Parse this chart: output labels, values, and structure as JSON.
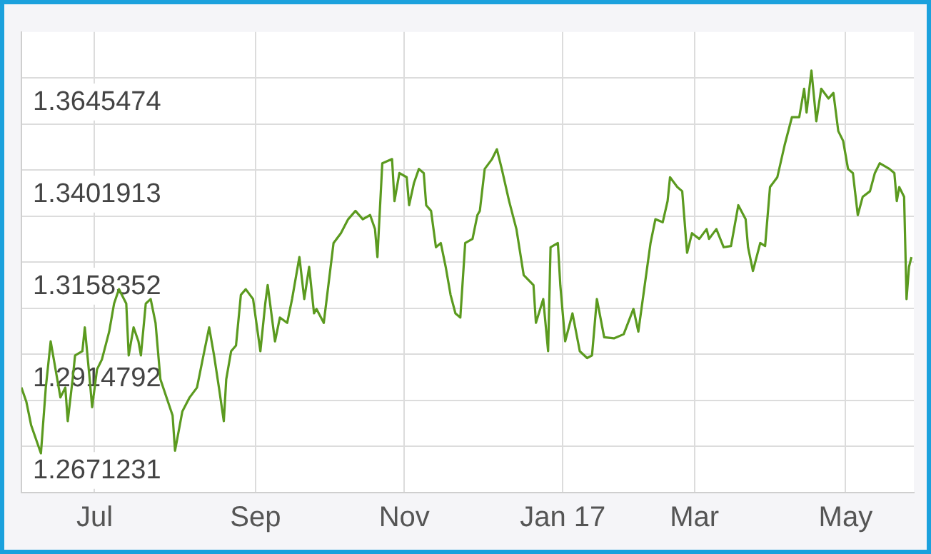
{
  "chart_data": {
    "type": "line",
    "color": "#5b9a1f",
    "marker": "none",
    "grid": true,
    "xlim": [
      "2016-06-15",
      "2017-06-16"
    ],
    "xticks": [
      {
        "value": "2016-07-15",
        "label": "Jul"
      },
      {
        "value": "2016-09-19",
        "label": "Sep"
      },
      {
        "value": "2016-11-19",
        "label": "Nov"
      },
      {
        "value": "2017-01-23",
        "label": "Jan 17"
      },
      {
        "value": "2017-03-18",
        "label": "Mar"
      },
      {
        "value": "2017-05-19",
        "label": "May"
      }
    ],
    "ylim": [
      1.2671231,
      1.3889035
    ],
    "yticks": [
      1.2671231,
      {
        "value": 1.27930115,
        "label": null
      },
      1.2914792,
      {
        "value": 1.30365725,
        "label": null
      },
      1.3158352,
      {
        "value": 1.32801325,
        "label": null
      },
      1.3401913,
      {
        "value": 1.35236935,
        "label": null
      },
      1.3645474,
      {
        "value": 1.37672545,
        "label": null
      }
    ],
    "x": [
      "2016-06-15",
      "2016-06-17",
      "2016-06-19",
      "2016-06-23",
      "2016-06-25",
      "2016-06-27",
      "2016-06-29",
      "2016-07-01",
      "2016-07-03",
      "2016-07-04",
      "2016-07-06",
      "2016-07-07",
      "2016-07-10",
      "2016-07-11",
      "2016-07-13",
      "2016-07-14",
      "2016-07-16",
      "2016-07-18",
      "2016-07-21",
      "2016-07-23",
      "2016-07-25",
      "2016-07-28",
      "2016-07-29",
      "2016-07-31",
      "2016-08-02",
      "2016-08-03",
      "2016-08-05",
      "2016-08-07",
      "2016-08-09",
      "2016-08-11",
      "2016-08-16",
      "2016-08-17",
      "2016-08-20",
      "2016-08-23",
      "2016-08-26",
      "2016-08-29",
      "2016-08-31",
      "2016-09-02",
      "2016-09-04",
      "2016-09-06",
      "2016-09-07",
      "2016-09-09",
      "2016-09-11",
      "2016-09-13",
      "2016-09-15",
      "2016-09-18",
      "2016-09-21",
      "2016-09-23",
      "2016-09-24",
      "2016-09-27",
      "2016-09-29",
      "2016-10-02",
      "2016-10-04",
      "2016-10-07",
      "2016-10-09",
      "2016-10-11",
      "2016-10-13",
      "2016-10-14",
      "2016-10-17",
      "2016-10-21",
      "2016-10-24",
      "2016-10-27",
      "2016-10-30",
      "2016-11-02",
      "2016-11-05",
      "2016-11-07",
      "2016-11-08",
      "2016-11-10",
      "2016-11-14",
      "2016-11-15",
      "2016-11-17",
      "2016-11-20",
      "2016-11-21",
      "2016-11-23",
      "2016-11-25",
      "2016-11-27",
      "2016-11-28",
      "2016-11-30",
      "2016-12-02",
      "2016-12-04",
      "2016-12-06",
      "2016-12-08",
      "2016-12-10",
      "2016-12-12",
      "2016-12-14",
      "2016-12-17",
      "2016-12-19",
      "2016-12-20",
      "2016-12-22",
      "2016-12-25",
      "2016-12-27",
      "2016-12-29",
      "2017-01-01",
      "2017-01-04",
      "2017-01-07",
      "2017-01-11",
      "2017-01-12",
      "2017-01-15",
      "2017-01-17",
      "2017-01-18",
      "2017-01-21",
      "2017-01-22",
      "2017-01-24",
      "2017-01-27",
      "2017-01-30",
      "2017-02-02",
      "2017-02-04",
      "2017-02-06",
      "2017-02-09",
      "2017-02-13",
      "2017-02-17",
      "2017-02-21",
      "2017-02-23",
      "2017-02-28",
      "2017-03-02",
      "2017-03-05",
      "2017-03-07",
      "2017-03-08",
      "2017-03-11",
      "2017-03-13",
      "2017-03-15",
      "2017-03-17",
      "2017-03-20",
      "2017-03-23",
      "2017-03-24",
      "2017-03-27",
      "2017-03-30",
      "2017-04-02",
      "2017-04-05",
      "2017-04-08",
      "2017-04-09",
      "2017-04-11",
      "2017-04-14",
      "2017-04-16",
      "2017-04-18",
      "2017-04-21",
      "2017-04-24",
      "2017-04-27",
      "2017-04-30",
      "2017-05-02",
      "2017-05-03",
      "2017-05-05",
      "2017-05-07",
      "2017-05-09",
      "2017-05-12",
      "2017-05-14",
      "2017-05-16",
      "2017-05-18",
      "2017-05-20",
      "2017-05-22",
      "2017-05-24",
      "2017-05-26",
      "2017-05-29",
      "2017-05-31",
      "2017-06-02",
      "2017-06-06",
      "2017-06-08",
      "2017-06-09",
      "2017-06-10",
      "2017-06-12",
      "2017-06-13",
      "2017-06-14",
      "2017-06-15"
    ],
    "values": [
      1.2949,
      1.2912,
      1.2849,
      1.2775,
      1.2949,
      1.3071,
      1.2997,
      1.2923,
      1.2949,
      1.286,
      1.2971,
      1.3034,
      1.3045,
      1.3108,
      1.2971,
      1.2897,
      1.2997,
      1.3023,
      1.3097,
      1.3171,
      1.3209,
      1.3171,
      1.3034,
      1.3108,
      1.3071,
      1.3034,
      1.3171,
      1.3183,
      1.312,
      1.2971,
      1.2875,
      1.2782,
      1.2886,
      1.2923,
      1.2949,
      1.3045,
      1.3108,
      1.3034,
      1.2949,
      1.286,
      1.2971,
      1.3045,
      1.306,
      1.3194,
      1.3209,
      1.3183,
      1.3045,
      1.3171,
      1.322,
      1.3071,
      1.3134,
      1.312,
      1.3183,
      1.3294,
      1.3183,
      1.3268,
      1.3145,
      1.3157,
      1.312,
      1.3331,
      1.3357,
      1.3394,
      1.3416,
      1.3394,
      1.3405,
      1.3368,
      1.3294,
      1.3542,
      1.3553,
      1.3442,
      1.3516,
      1.3505,
      1.3431,
      1.349,
      1.3527,
      1.3516,
      1.3431,
      1.3416,
      1.332,
      1.3331,
      1.3268,
      1.3194,
      1.3145,
      1.3134,
      1.3331,
      1.3342,
      1.3405,
      1.3416,
      1.3527,
      1.3553,
      1.3579,
      1.3527,
      1.3442,
      1.3368,
      1.3246,
      1.322,
      1.312,
      1.3183,
      1.3045,
      1.332,
      1.3331,
      1.322,
      1.3071,
      1.3145,
      1.3045,
      1.3027,
      1.3034,
      1.3183,
      1.3082,
      1.3079,
      1.309,
      1.3157,
      1.3097,
      1.3331,
      1.3394,
      1.3386,
      1.3442,
      1.3505,
      1.3479,
      1.3468,
      1.3305,
      1.3357,
      1.3342,
      1.3368,
      1.3342,
      1.3368,
      1.332,
      1.3323,
      1.3431,
      1.3394,
      1.332,
      1.3257,
      1.3331,
      1.3323,
      1.3479,
      1.3505,
      1.359,
      1.3664,
      1.3664,
      1.3739,
      1.3676,
      1.3787,
      1.3653,
      1.3739,
      1.3713,
      1.3728,
      1.3627,
      1.3601,
      1.3527,
      1.3516,
      1.3405,
      1.3453,
      1.3468,
      1.3516,
      1.3542,
      1.3527,
      1.3516,
      1.3442,
      1.3479,
      1.3453,
      1.3183,
      1.3268,
      1.3294
    ]
  }
}
